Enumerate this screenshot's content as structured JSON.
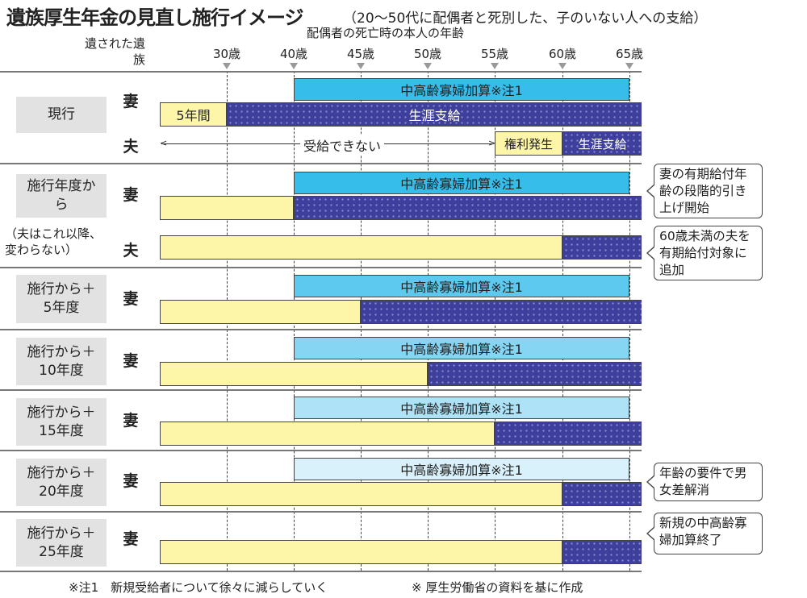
{
  "title": "遺族厚生年金の見直し施行イメージ",
  "subtitle": "（20～50代に配偶者と死別した、子のいない人への支給）",
  "axis_title": "配偶者の死亡時の本人の年齢",
  "survivor_label": "遺された遺族",
  "ticks": [
    "30歳",
    "40歳",
    "45歳",
    "50歳",
    "55歳",
    "60歳",
    "65歳"
  ],
  "tick_ages": [
    30,
    40,
    45,
    50,
    55,
    60,
    65
  ],
  "labels": {
    "wife": "妻",
    "husband": "夫",
    "addition": "中高齢寡婦加算※注1",
    "lifetime": "生涯支給",
    "five_years": "5年間",
    "cannot": "受給できない",
    "right": "権利発生",
    "husband_note": "（夫はこれ以降、変わらない）"
  },
  "colors": {
    "navy": "#3e3e9c",
    "yellow": "#fdf6a8",
    "blues": [
      "#37bdea",
      "#37bdea",
      "#5ec9ef",
      "#86d5f2",
      "#aee2f6",
      "#d9f1fb"
    ]
  },
  "groups": [
    {
      "label": "現行",
      "yellow_end": 30,
      "addition": true
    },
    {
      "label": "施行年度から",
      "yellow_end": 40,
      "addition": true
    },
    {
      "label": "施行から＋5年度",
      "yellow_end": 45,
      "addition": true
    },
    {
      "label": "施行から＋10年度",
      "yellow_end": 50,
      "addition": true
    },
    {
      "label": "施行から＋15年度",
      "yellow_end": 55,
      "addition": true
    },
    {
      "label": "施行から＋20年度",
      "yellow_end": 60,
      "addition": true
    },
    {
      "label": "施行から＋25年度",
      "yellow_end": 60,
      "addition": false
    }
  ],
  "callouts": [
    "妻の有期給付年齢の段階的引き上げ開始",
    "60歳未満の夫を有期給付対象に追加",
    "年齢の要件で男女差解消",
    "新規の中高齢寡婦加算終了"
  ],
  "footnotes": [
    "※注1　新規受給者について徐々に減らしていく",
    "※ 厚生労働省の資料を基に作成"
  ]
}
